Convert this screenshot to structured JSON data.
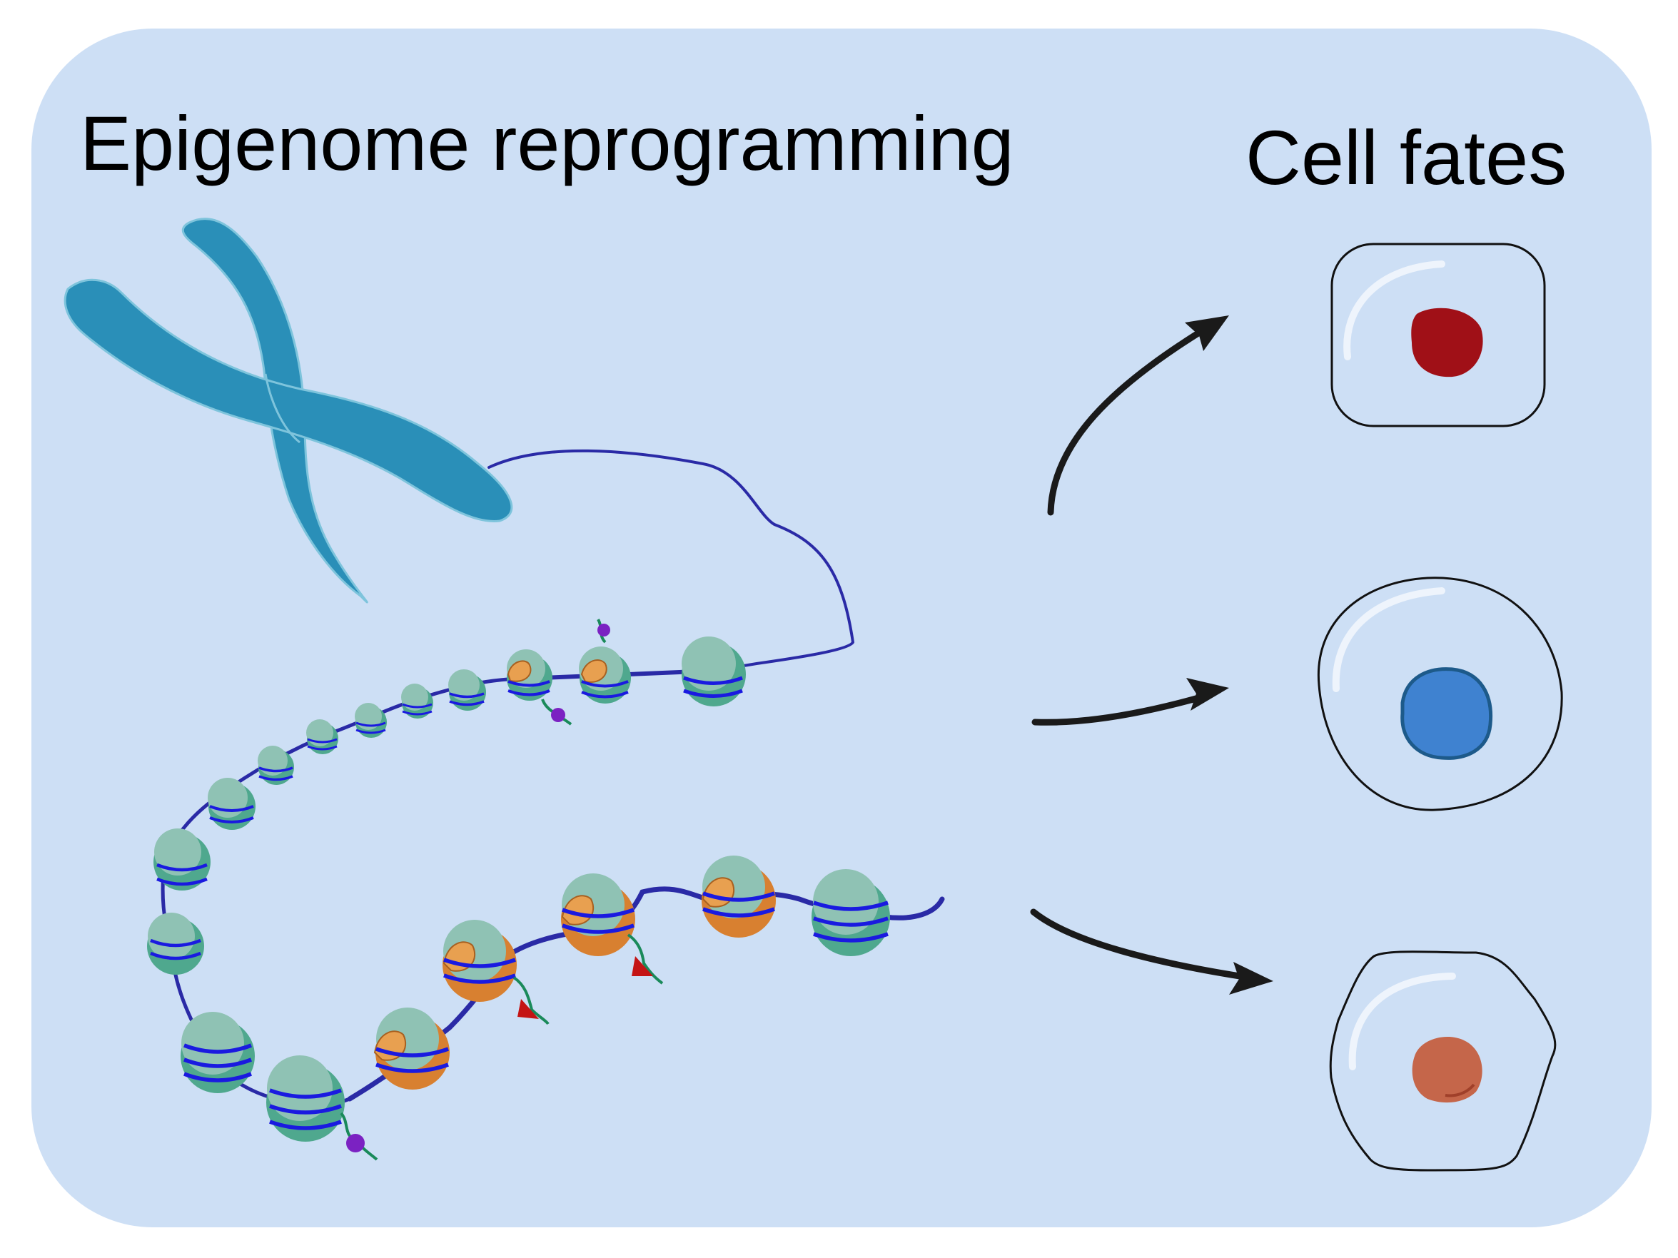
{
  "titles": {
    "left": "Epigenome reprogramming",
    "right": "Cell fates"
  },
  "colors": {
    "panel_background": "#cddff5",
    "chromosome": "#2a8fb8",
    "chromosome_outline": "#7ec4dc",
    "dna_strand": "#2a2aa6",
    "dna_wrap": "#1a1ae0",
    "histone": "#8fc2b4",
    "histone_shade": "#4fa88e",
    "histone_variant": "#e8a050",
    "histone_variant_shade": "#d88030",
    "mark_tail": "#1a8a5a",
    "mark_purple": "#7b22c2",
    "mark_red": "#c41414",
    "arrow": "#1a1a1a",
    "cell_outline": "#111111",
    "nucleus_red": "#a01017",
    "nucleus_blue": "#3f82d0",
    "nucleus_blue_outline": "#1d5a8a",
    "nucleus_orange": "#c5664a"
  },
  "icons": {
    "chromosome": "chromosome-icon",
    "chromatin": "chromatin-fiber",
    "nucleosome": "nucleosome-icon",
    "arrow": "arrow-icon",
    "cell_rectangular": "rectangular-cell-icon",
    "cell_round": "round-cell-icon",
    "cell_hexagonal": "hexagonal-cell-icon"
  }
}
